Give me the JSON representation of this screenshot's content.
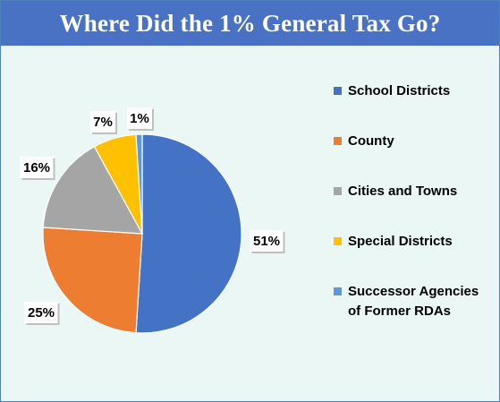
{
  "chart_data": {
    "type": "pie",
    "title": "Where Did the 1% General Tax Go?",
    "categories": [
      "School Districts",
      "County",
      "Cities and Towns",
      "Special Districts",
      "Successor Agencies of Former RDAs"
    ],
    "values": [
      51,
      25,
      16,
      7,
      1
    ],
    "data_labels": [
      "51%",
      "25%",
      "16%",
      "7%",
      "1%"
    ],
    "colors": [
      "#4472c4",
      "#ed7d31",
      "#a5a5a5",
      "#ffc000",
      "#5b9bd5"
    ],
    "legend": "right",
    "start_angle": "12 o'clock, clockwise"
  }
}
